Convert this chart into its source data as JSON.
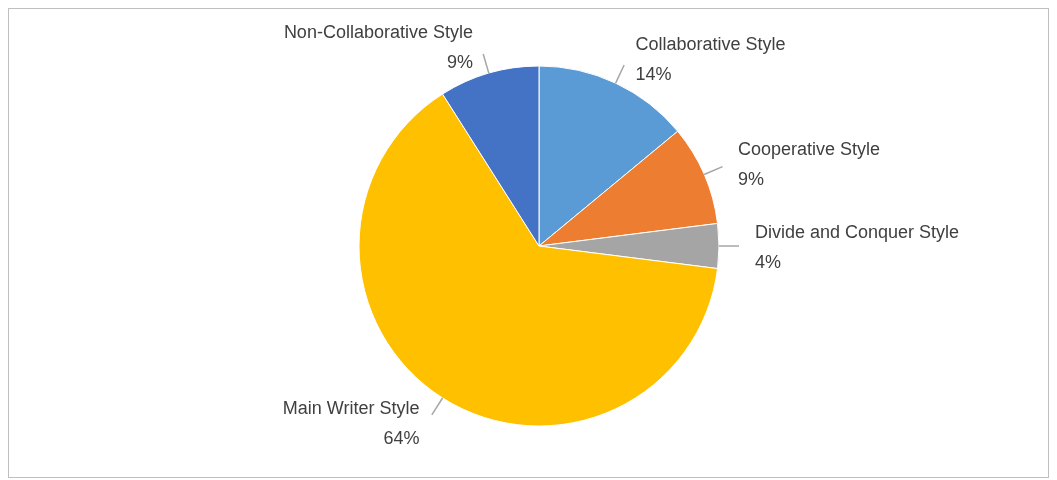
{
  "chart_data": {
    "type": "pie",
    "categories": [
      "Collaborative Style",
      "Cooperative Style",
      "Divide and Conquer Style",
      "Main Writer Style",
      "Non-Collaborative Style"
    ],
    "values": [
      14,
      9,
      4,
      64,
      9
    ],
    "value_labels": [
      "14%",
      "9%",
      "4%",
      "64%",
      "9%"
    ],
    "colors": [
      "#5b9bd5",
      "#ed7d31",
      "#a5a5a5",
      "#ffc000",
      "#4472c4"
    ],
    "legend": false
  }
}
